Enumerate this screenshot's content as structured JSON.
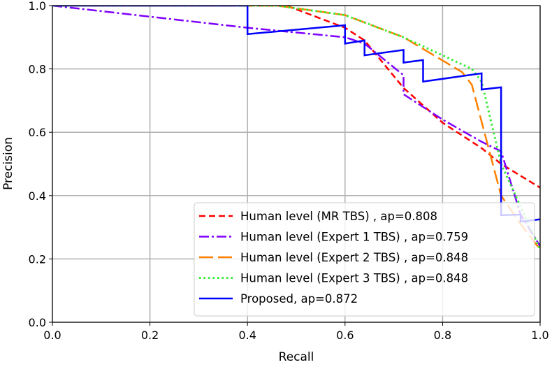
{
  "chart_data": {
    "type": "line",
    "title": "",
    "xlabel": "Recall",
    "ylabel": "Precision",
    "xlim": [
      0,
      1
    ],
    "ylim": [
      0,
      1
    ],
    "grid": true,
    "legend_placement": "lower-right",
    "xticks": [
      "0.0",
      "0.2",
      "0.4",
      "0.6",
      "0.8",
      "1.0"
    ],
    "yticks": [
      "0.0",
      "0.2",
      "0.4",
      "0.6",
      "0.8",
      "1.0"
    ],
    "series": [
      {
        "name": "Human level (MR TBS) , ap=0.808",
        "color": "#ff0000",
        "style": "dashed",
        "x": [
          0,
          0.48,
          0.6,
          0.64,
          0.72,
          0.8,
          0.88,
          0.92,
          1.0
        ],
        "y": [
          1.0,
          1.0,
          0.93,
          0.89,
          0.74,
          0.63,
          0.55,
          0.5,
          0.425
        ]
      },
      {
        "name": "Human level (Expert 1 TBS) , ap=0.759",
        "color": "#7f00ff",
        "style": "dashdot",
        "x": [
          0,
          0.4,
          0.6,
          0.64,
          0.72,
          0.72,
          0.8,
          0.88,
          0.92,
          0.96,
          1.0
        ],
        "y": [
          1.0,
          0.93,
          0.9,
          0.88,
          0.78,
          0.72,
          0.64,
          0.57,
          0.54,
          0.34,
          0.24
        ]
      },
      {
        "name": "Human level (Expert 2 TBS) , ap=0.848",
        "color": "#ff8000",
        "style": "longdash",
        "x": [
          0,
          0.46,
          0.6,
          0.72,
          0.84,
          0.86,
          0.92,
          0.96,
          1.0
        ],
        "y": [
          1.0,
          1.0,
          0.97,
          0.9,
          0.79,
          0.75,
          0.4,
          0.31,
          0.23
        ]
      },
      {
        "name": "Human level (Expert 3 TBS) , ap=0.848",
        "color": "#33ee33",
        "style": "dotted",
        "x": [
          0,
          0.46,
          0.6,
          0.72,
          0.86,
          0.88,
          0.92,
          1.0
        ],
        "y": [
          1.0,
          1.0,
          0.97,
          0.9,
          0.8,
          0.76,
          0.5,
          0.23
        ]
      },
      {
        "name": "Proposed, ap=0.872",
        "color": "#0000ff",
        "style": "solid",
        "x": [
          0,
          0.4,
          0.4,
          0.6,
          0.6,
          0.64,
          0.64,
          0.72,
          0.72,
          0.76,
          0.76,
          0.88,
          0.88,
          0.92,
          0.92,
          0.96,
          0.96,
          1.0
        ],
        "y": [
          1.0,
          1.0,
          0.91,
          0.938,
          0.88,
          0.89,
          0.843,
          0.86,
          0.82,
          0.828,
          0.76,
          0.786,
          0.735,
          0.742,
          0.338,
          0.34,
          0.318,
          0.325
        ]
      }
    ]
  }
}
